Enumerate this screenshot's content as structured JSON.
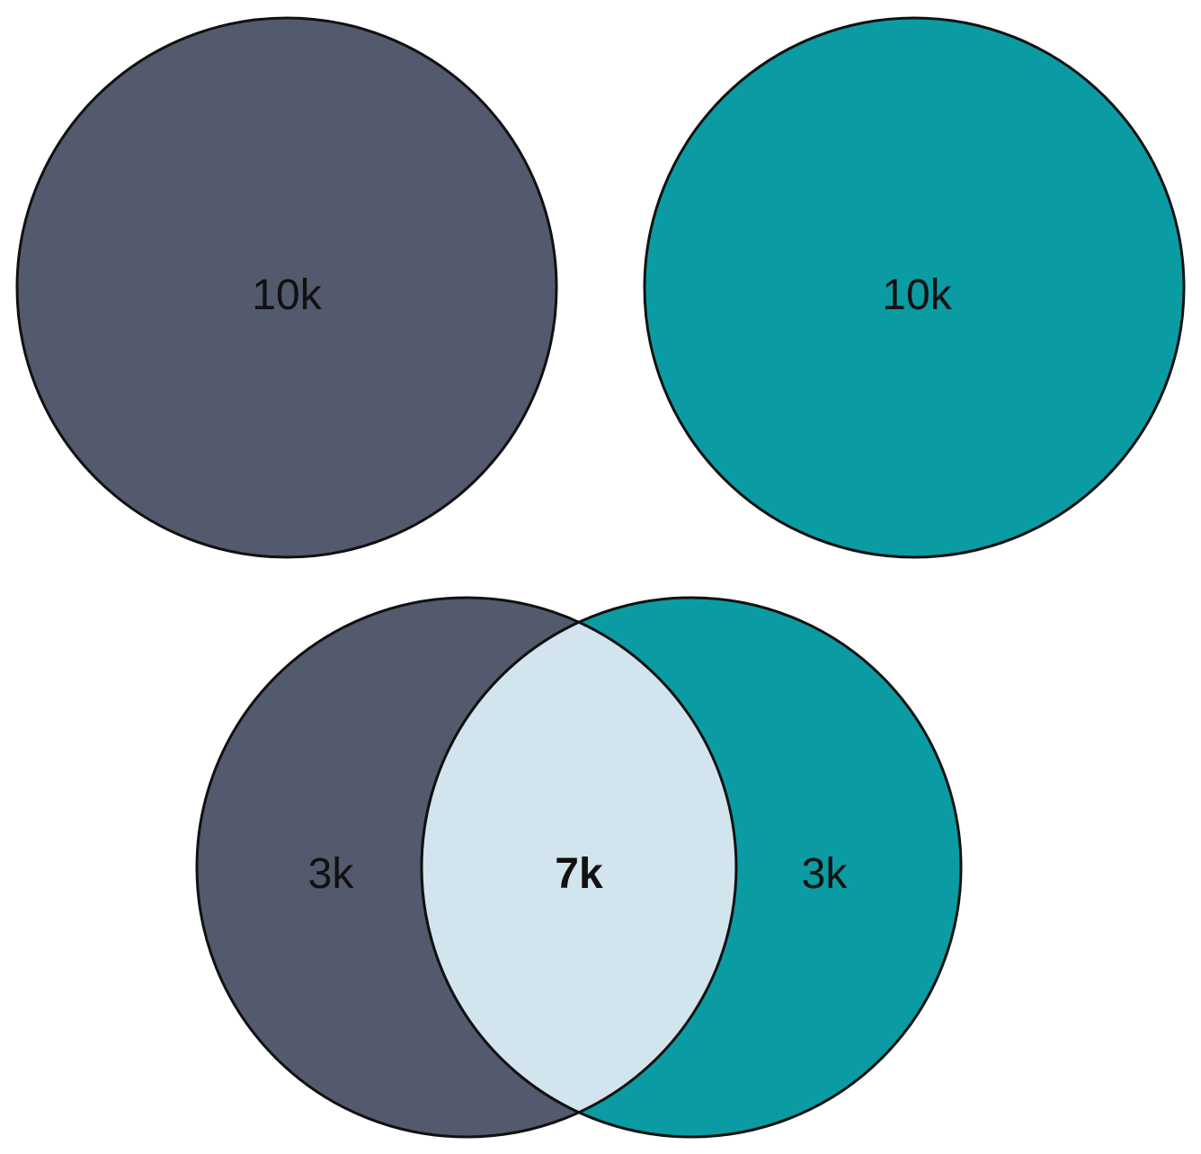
{
  "colors": {
    "set_a": "#545a6d",
    "set_b": "#0a9ca2",
    "overlap": "#d2e5ee",
    "outline": "#111111",
    "background": "#ffffff"
  },
  "top": {
    "left_circle_label": "10k",
    "right_circle_label": "10k"
  },
  "venn": {
    "left_only_label": "3k",
    "intersection_label": "7k",
    "right_only_label": "3k"
  }
}
